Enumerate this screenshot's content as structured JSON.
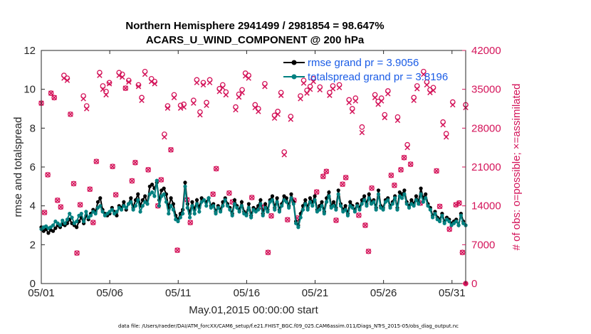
{
  "chart_data": {
    "type": "line",
    "title": "Northern Hemisphere 2941499 / 2981854 = 98.647%",
    "subtitle": "ACARS_U_WIND_COMPONENT @ 200 hPa",
    "xlabel": "May.01,2015 00:00:00 start",
    "ylabel": "rmse and totalspread",
    "y2label": "# of obs: o=possible; ×=assimilated",
    "x_ticks": [
      1,
      6,
      11,
      16,
      21,
      26,
      31
    ],
    "x_tick_labels": [
      "05/01",
      "05/06",
      "05/11",
      "05/16",
      "05/21",
      "05/26",
      "05/31"
    ],
    "xlim": [
      1,
      32
    ],
    "ylim": [
      0,
      12
    ],
    "y_ticks": [
      0,
      2,
      4,
      6,
      8,
      10,
      12
    ],
    "y2lim": [
      0,
      42000
    ],
    "y2_ticks": [
      0,
      7000,
      14000,
      21000,
      28000,
      35000,
      42000
    ],
    "legend_position": "top-right",
    "series": [
      {
        "name": "rmse grand pr = 3.9056",
        "color": "#000000",
        "values": [
          2.9,
          2.7,
          2.8,
          2.6,
          2.75,
          2.7,
          2.85,
          3.0,
          2.9,
          3.05,
          3.0,
          3.1,
          3.3,
          3.1,
          3.0,
          2.9,
          3.2,
          3.4,
          3.1,
          3.5,
          3.3,
          3.6,
          3.8,
          3.7,
          4.2,
          4.4,
          3.8,
          3.6,
          3.5,
          3.6,
          3.9,
          3.7,
          3.5,
          4.0,
          3.9,
          4.2,
          3.8,
          4.1,
          4.4,
          3.9,
          4.3,
          4.6,
          4.0,
          4.3,
          4.5,
          4.1,
          5.0,
          5.1,
          4.9,
          5.2,
          4.3,
          4.8,
          4.9,
          4.6,
          3.9,
          4.4,
          4.1,
          3.5,
          3.3,
          3.6,
          3.8,
          5.2,
          4.1,
          3.6,
          4.2,
          3.8,
          4.3,
          3.9,
          4.4,
          4.3,
          4.2,
          4.4,
          4.0,
          4.1,
          3.7,
          4.0,
          3.8,
          4.2,
          4.4,
          4.1,
          3.9,
          3.6,
          4.3,
          4.0,
          3.8,
          4.2,
          3.7,
          3.6,
          4.1,
          3.5,
          3.9,
          3.8,
          4.0,
          4.3,
          3.6,
          4.1,
          3.8,
          4.3,
          4.5,
          3.9,
          4.4,
          3.8,
          4.1,
          4.5,
          4.4,
          4.0,
          4.6,
          4.2,
          3.2,
          3.0,
          3.6,
          4.0,
          4.3,
          3.9,
          4.4,
          4.2,
          4.5,
          3.8,
          4.0,
          4.2,
          3.7,
          4.4,
          4.7,
          4.0,
          4.2,
          3.9,
          4.8,
          4.1,
          3.8,
          4.0,
          3.6,
          4.2,
          4.0,
          3.8,
          4.1,
          3.9,
          4.3,
          4.5,
          4.1,
          4.6,
          4.2,
          4.3,
          3.9,
          4.8,
          4.0,
          3.9,
          4.3,
          4.4,
          4.0,
          4.2,
          4.5,
          3.9,
          4.7,
          4.6,
          4.8,
          4.2,
          4.0,
          4.3,
          4.1,
          4.5,
          4.2,
          4.9,
          4.4,
          4.6,
          4.1,
          3.9,
          3.5,
          3.7,
          3.4,
          3.3,
          3.6,
          3.2,
          3.4,
          3.3,
          3.1,
          3.2,
          3.3,
          3.0,
          3.6,
          3.2,
          3.0
        ],
        "label_note": "dense ~6-hourly series approximated"
      },
      {
        "name": "totalspread grand pr = 3.8196",
        "color": "#008080",
        "values": [
          2.8,
          2.9,
          2.95,
          2.85,
          2.9,
          3.0,
          3.2,
          3.1,
          3.0,
          3.25,
          3.1,
          3.3,
          3.6,
          3.4,
          3.1,
          3.2,
          3.5,
          3.6,
          3.2,
          3.7,
          3.4,
          3.5,
          3.7,
          3.6,
          3.9,
          4.0,
          3.7,
          3.5,
          3.6,
          3.7,
          3.8,
          3.6,
          3.7,
          3.9,
          3.8,
          4.0,
          3.9,
          4.1,
          4.2,
          3.8,
          4.0,
          4.3,
          3.7,
          4.0,
          4.2,
          4.1,
          4.6,
          4.7,
          4.5,
          5.3,
          4.0,
          4.5,
          4.6,
          4.2,
          3.6,
          4.0,
          3.8,
          3.3,
          3.2,
          3.4,
          3.6,
          5.0,
          3.9,
          3.4,
          4.0,
          3.6,
          4.1,
          3.7,
          4.2,
          4.3,
          4.0,
          4.4,
          3.9,
          4.0,
          3.6,
          3.9,
          3.7,
          4.0,
          4.3,
          4.0,
          3.8,
          3.5,
          4.1,
          3.9,
          3.7,
          4.0,
          3.6,
          3.5,
          3.9,
          3.4,
          3.8,
          3.7,
          3.8,
          4.1,
          3.5,
          3.9,
          3.7,
          4.2,
          4.3,
          3.8,
          4.2,
          3.7,
          4.0,
          4.3,
          4.2,
          3.9,
          4.4,
          4.1,
          3.1,
          2.9,
          3.4,
          3.8,
          4.1,
          3.8,
          4.2,
          4.0,
          4.3,
          3.7,
          3.8,
          4.0,
          3.6,
          4.2,
          4.5,
          3.9,
          4.0,
          3.8,
          4.6,
          4.0,
          3.7,
          3.8,
          3.5,
          4.0,
          3.9,
          3.7,
          4.0,
          3.8,
          4.1,
          4.3,
          4.0,
          4.4,
          4.1,
          4.2,
          3.8,
          4.6,
          3.9,
          3.8,
          4.2,
          4.3,
          3.9,
          4.1,
          4.4,
          3.8,
          4.5,
          4.4,
          4.6,
          4.1,
          3.9,
          4.1,
          4.0,
          4.3,
          4.1,
          4.6,
          4.2,
          4.4,
          4.0,
          3.8,
          3.4,
          3.6,
          3.3,
          3.2,
          3.5,
          3.1,
          3.3,
          3.2,
          3.0,
          3.1,
          3.2,
          3.0,
          3.5,
          3.1,
          3.0
        ],
        "label_note": "dense ~6-hourly series approximated"
      },
      {
        "name": "obs possible (o)",
        "color": "#d4145a",
        "axis": "right",
        "values": [
          32500,
          12800,
          19600,
          34300,
          33500,
          15000,
          13800,
          37500,
          37000,
          30500,
          18000,
          5500,
          14200,
          33800,
          32000,
          17000,
          11000,
          22000,
          38000,
          35600,
          34600,
          36200,
          21100,
          16000,
          38000,
          37700,
          35200,
          36600,
          18500,
          21800,
          35800,
          33500,
          38200,
          20500,
          36900,
          36400,
          14000,
          18700,
          26900,
          32000,
          24100,
          34000,
          6000,
          32100,
          32300,
          15100,
          11000,
          33000,
          36700,
          30900,
          36200,
          32600,
          36700,
          16100,
          20700,
          35100,
          35800,
          34500,
          16300,
          14700,
          31800,
          34100,
          34900,
          37900,
          37500,
          15500,
          32200,
          31500,
          13800,
          36000,
          5600,
          12200,
          30300,
          31000,
          34400,
          23700,
          11500,
          30100,
          15000,
          11800,
          33800,
          36600,
          34800,
          35500,
          36900,
          16500,
          35400,
          19300,
          20200,
          34400,
          35600,
          11400,
          35800,
          17900,
          19100,
          33100,
          31500,
          33400,
          12300,
          28200,
          10500,
          5800,
          17200,
          34000,
          32800,
          33400,
          30400,
          34700,
          19500,
          17700,
          30000,
          20500,
          22700,
          25000,
          21500,
          33500,
          35600,
          14500,
          38200,
          36300,
          34900,
          35300,
          20300,
          13900,
          29100,
          27000,
          9800,
          32700,
          14200,
          14500,
          5600,
          32200
        ],
        "label_note": "scatter approximated"
      },
      {
        "name": "obs assimilated (×)",
        "color": "#d4145a",
        "axis": "right",
        "values": [
          32500,
          12800,
          19600,
          34300,
          33500,
          15000,
          13800,
          37000,
          36600,
          30500,
          18000,
          5500,
          14200,
          33300,
          31500,
          17000,
          11000,
          22000,
          37500,
          35000,
          34000,
          36000,
          21100,
          16000,
          37500,
          37200,
          35200,
          36300,
          18500,
          21800,
          35500,
          33000,
          37700,
          20500,
          36400,
          36000,
          14000,
          18700,
          26400,
          31600,
          24100,
          33500,
          6000,
          31600,
          31800,
          15100,
          11000,
          32500,
          36200,
          30400,
          35800,
          32100,
          36200,
          16100,
          20700,
          34600,
          35300,
          34000,
          16300,
          14700,
          31300,
          33600,
          34400,
          37400,
          37000,
          15500,
          31700,
          31000,
          13800,
          35500,
          5600,
          12200,
          29800,
          30500,
          33900,
          23200,
          11500,
          29600,
          15000,
          11800,
          33300,
          36100,
          34300,
          35000,
          36400,
          16500,
          34900,
          19300,
          20200,
          33900,
          35100,
          11400,
          35300,
          17900,
          19100,
          32600,
          31000,
          32900,
          12300,
          27200,
          10500,
          5800,
          17200,
          33500,
          32300,
          32900,
          29900,
          34200,
          19500,
          17700,
          29400,
          20500,
          22700,
          24500,
          21500,
          33000,
          35100,
          14500,
          37700,
          35800,
          34400,
          34800,
          20300,
          13900,
          28600,
          26400,
          9800,
          32200,
          14200,
          14500,
          5600,
          31700
        ],
        "label_note": "scatter approximated"
      }
    ]
  },
  "footer_text": "data file: /Users/raeder/DAI/ATM_forcXX/CAM6_setup/f.e21.FHIST_BGC.f09_025.CAM6assim.011/Diags_NTrS_2015-05/obs_diag_output.nc"
}
